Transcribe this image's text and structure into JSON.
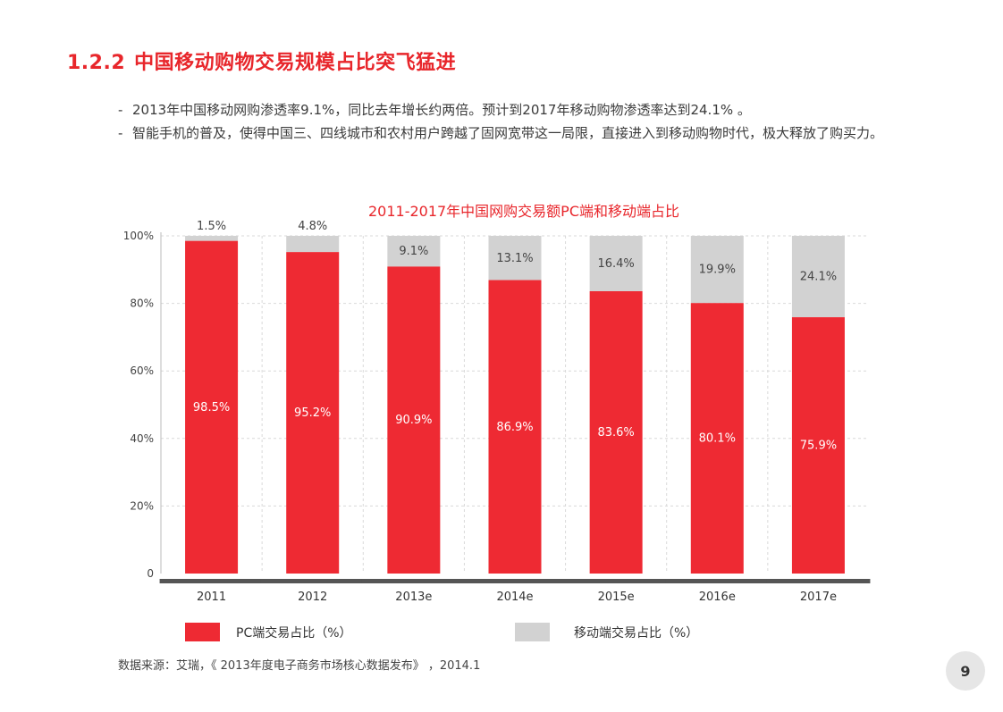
{
  "section": {
    "number": "1.2.2",
    "title": "中国移动购物交易规模占比突飞猛进"
  },
  "bullets": [
    "2013年中国移动网购渗透率9.1%，同比去年增长约两倍。预计到2017年移动购物渗透率达到24.1% 。",
    "智能手机的普及，使得中国三、四线城市和农村用户跨越了固网宽带这一局限，直接进入到移动购物时代，极大释放了购买力。"
  ],
  "colors": {
    "accent": "#e8262b",
    "pc": "#ee2a33",
    "mobile": "#d2d2d2",
    "axis": "#555555",
    "grid": "#d9d9d9"
  },
  "chart_data": {
    "type": "bar",
    "stacked": true,
    "title": "2011-2017年中国网购交易额PC端和移动端占比",
    "categories": [
      "2011",
      "2012",
      "2013e",
      "2014e",
      "2015e",
      "2016e",
      "2017e"
    ],
    "series": [
      {
        "name": "PC端交易占比（%）",
        "values": [
          98.5,
          95.2,
          90.9,
          86.9,
          83.6,
          80.1,
          75.9
        ],
        "labels": [
          "98.5%",
          "95.2%",
          "90.9%",
          "86.9%",
          "83.6%",
          "80.1%",
          "75.9%"
        ]
      },
      {
        "name": "移动端交易占比（%）",
        "values": [
          1.5,
          4.8,
          9.1,
          13.1,
          16.4,
          19.9,
          24.1
        ],
        "labels": [
          "1.5%",
          "4.8%",
          "9.1%",
          "13.1%",
          "16.4%",
          "19.9%",
          "24.1%"
        ]
      }
    ],
    "y_ticks": [
      "0",
      "20%",
      "40%",
      "60%",
      "80%",
      "100%"
    ],
    "y_tick_values": [
      0,
      20,
      40,
      60,
      80,
      100
    ],
    "ylim": [
      0,
      100
    ],
    "xlabel": "",
    "ylabel": "",
    "grid": true,
    "legend_position": "bottom"
  },
  "source": "数据来源：艾瑞，《 2013年度电子商务市场核心数据发布》 ，2014.1",
  "page_number": "9"
}
